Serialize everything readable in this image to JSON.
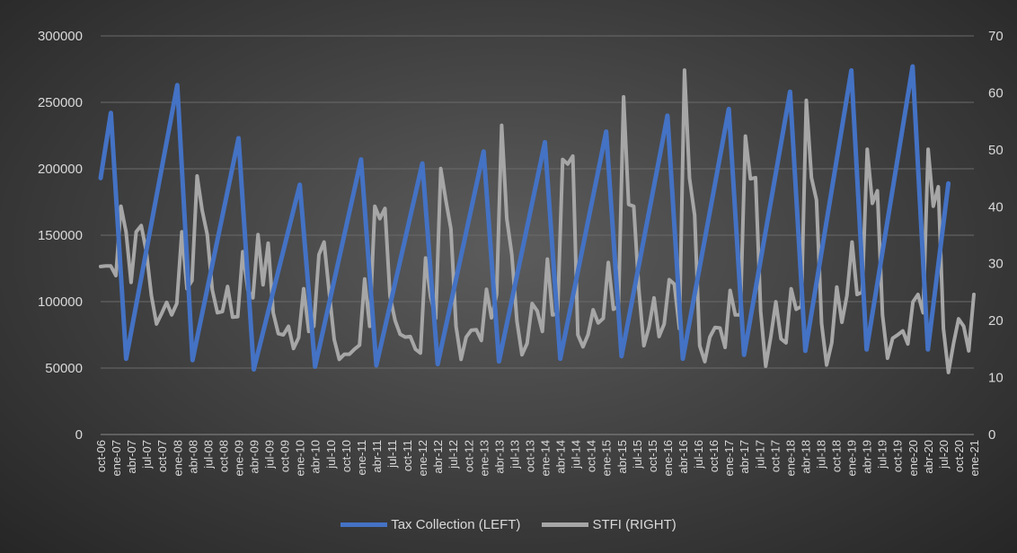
{
  "colors": {
    "tax": "#4472c4",
    "stfi": "#a6a6a6",
    "grid": "#6a6a6a",
    "text": "#d9d9d9"
  },
  "legend": {
    "tax_label": "Tax Collection (LEFT)",
    "stfi_label": "STFI (RIGHT)"
  },
  "chart_data": {
    "type": "line",
    "grid": true,
    "legend_position": "bottom",
    "y_left": {
      "ylim": [
        0,
        300000
      ],
      "ticks": [
        "0",
        "50000",
        "100000",
        "150000",
        "200000",
        "250000",
        "300000"
      ]
    },
    "y_right": {
      "ylim": [
        0,
        70
      ],
      "ticks": [
        "0",
        "10",
        "20",
        "30",
        "40",
        "50",
        "60",
        "70"
      ]
    },
    "x_tick_labels": [
      "oct-06",
      "ene-07",
      "abr-07",
      "jul-07",
      "oct-07",
      "ene-08",
      "abr-08",
      "jul-08",
      "oct-08",
      "ene-09",
      "abr-09",
      "jul-09",
      "oct-09",
      "ene-10",
      "abr-10",
      "jul-10",
      "oct-10",
      "ene-11",
      "abr-11",
      "jul-11",
      "oct-11",
      "ene-12",
      "abr-12",
      "jul-12",
      "oct-12",
      "ene-13",
      "abr-13",
      "jul-13",
      "oct-13",
      "ene-14",
      "abr-14",
      "jul-14",
      "oct-14",
      "ene-15",
      "abr-15",
      "jul-15",
      "oct-15",
      "ene-16",
      "abr-16",
      "jul-16",
      "oct-16",
      "ene-17",
      "abr-17",
      "jul-17",
      "oct-17",
      "ene-18",
      "abr-18",
      "jul-18",
      "oct-18",
      "ene-19",
      "abr-19",
      "jul-19",
      "oct-19",
      "ene-20",
      "abr-20",
      "jul-20",
      "oct-20",
      "ene-21"
    ],
    "series": [
      {
        "name": "Tax Collection (LEFT)",
        "axis": "left",
        "points": [
          [
            "oct-06",
            193000
          ],
          [
            "dic-06",
            242000
          ],
          [
            "mar-07",
            57000
          ],
          [
            "ene-08",
            263000
          ],
          [
            "abr-08",
            56000
          ],
          [
            "ene-09",
            223000
          ],
          [
            "abr-09",
            49000
          ],
          [
            "ene-10",
            188000
          ],
          [
            "abr-10",
            51000
          ],
          [
            "ene-11",
            207000
          ],
          [
            "abr-11",
            52000
          ],
          [
            "ene-12",
            204000
          ],
          [
            "abr-12",
            53000
          ],
          [
            "ene-13",
            213000
          ],
          [
            "abr-13",
            55000
          ],
          [
            "ene-14",
            220000
          ],
          [
            "abr-14",
            57000
          ],
          [
            "ene-15",
            228000
          ],
          [
            "abr-15",
            59000
          ],
          [
            "ene-16",
            240000
          ],
          [
            "abr-16",
            57000
          ],
          [
            "ene-17",
            245000
          ],
          [
            "abr-17",
            60000
          ],
          [
            "ene-18",
            258000
          ],
          [
            "abr-18",
            63000
          ],
          [
            "ene-19",
            274000
          ],
          [
            "abr-19",
            64000
          ],
          [
            "ene-20",
            277000
          ],
          [
            "abr-20",
            64000
          ],
          [
            "ago-20",
            189000
          ]
        ]
      },
      {
        "name": "STFI (RIGHT)",
        "axis": "right",
        "values": [
          29.5,
          29.6,
          29.6,
          27.9,
          40.1,
          35.6,
          26.7,
          35.6,
          36.7,
          32.1,
          24.4,
          19.4,
          21.2,
          23.2,
          21.0,
          23.0,
          35.6,
          25.6,
          27.0,
          45.4,
          39.4,
          35.1,
          25.4,
          21.4,
          21.6,
          26.0,
          20.6,
          20.7,
          32.1,
          25.4,
          24.0,
          35.1,
          26.3,
          33.6,
          21.4,
          17.7,
          17.5,
          19.0,
          15.1,
          17.0,
          25.6,
          18.1,
          19.0,
          31.6,
          33.8,
          25.2,
          16.7,
          13.2,
          14.1,
          14.1,
          15.0,
          15.7,
          27.3,
          19.0,
          40.1,
          37.9,
          39.7,
          24.3,
          20.0,
          17.6,
          17.1,
          17.2,
          15.0,
          14.3,
          31.0,
          24.2,
          20.4,
          46.7,
          41.1,
          36.1,
          19.0,
          13.2,
          17.1,
          18.3,
          18.4,
          16.5,
          25.5,
          20.5,
          24.6,
          54.3,
          37.9,
          31.6,
          19.9,
          14.0,
          16.0,
          23.0,
          21.7,
          18.1,
          30.8,
          21.0,
          21.2,
          48.3,
          47.5,
          48.9,
          17.5,
          15.4,
          17.5,
          21.9,
          19.6,
          20.4,
          30.2,
          22.0,
          22.5,
          59.3,
          40.4,
          40.1,
          25.6,
          15.6,
          18.8,
          24.0,
          17.2,
          19.4,
          27.2,
          26.4,
          18.6,
          64.0,
          45.0,
          38.5,
          15.6,
          12.8,
          17.1,
          18.8,
          18.7,
          15.3,
          25.3,
          21.0,
          21.0,
          52.4,
          44.9,
          45.1,
          21.6,
          12.0,
          17.2,
          23.3,
          16.8,
          16.1,
          25.6,
          22.0,
          22.5,
          58.7,
          45.1,
          41.2,
          19.5,
          12.2,
          16.1,
          25.9,
          19.7,
          24.4,
          33.8,
          24.6,
          25.0,
          50.1,
          40.6,
          42.8,
          21.0,
          13.4,
          16.9,
          17.5,
          18.2,
          15.9,
          23.3,
          24.6,
          21.4,
          50.1,
          40.1,
          43.5,
          18.6,
          10.9,
          16.0,
          20.3,
          19.0,
          14.7,
          24.6
        ]
      }
    ]
  }
}
